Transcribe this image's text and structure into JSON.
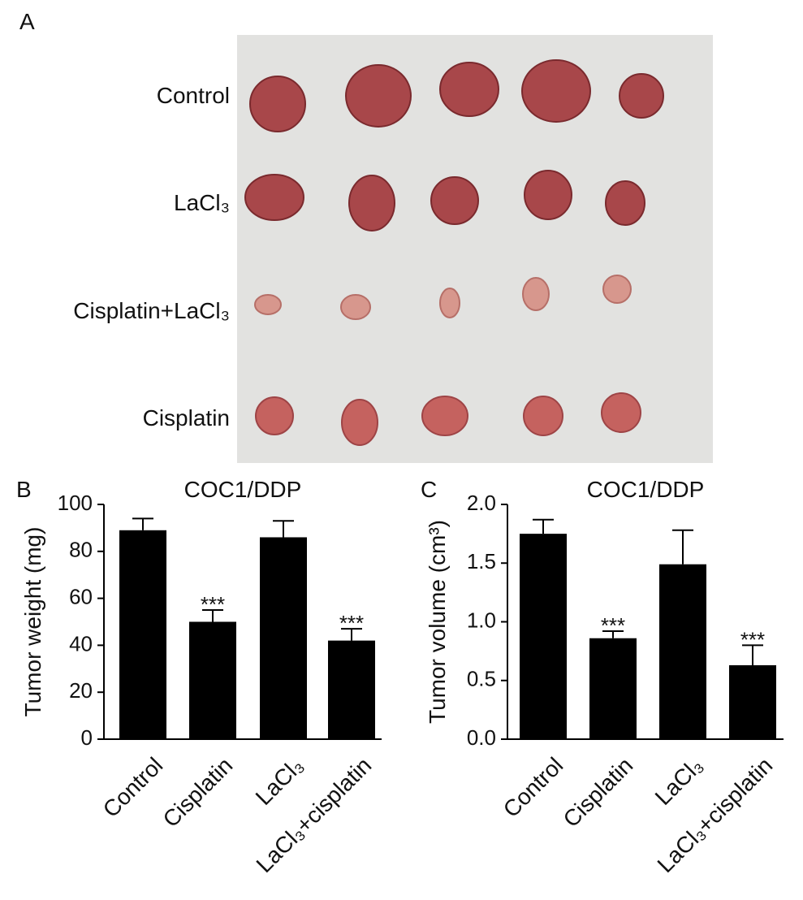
{
  "photo": {
    "panel_label": "A",
    "rows": [
      "Control",
      "LaCl₃",
      "Cisplatin+LaCl₃",
      "Cisplatin"
    ]
  },
  "chart_data": [
    {
      "type": "bar",
      "panel_label": "B",
      "title": "COC1/DDP",
      "ylabel": "Tumor weight (mg)",
      "categories": [
        "Control",
        "Cisplatin",
        "LaCl₃",
        "LaCl₃+cisplatin"
      ],
      "values": [
        89,
        50,
        86,
        42
      ],
      "errors": [
        5,
        5,
        7,
        5
      ],
      "color": "#000000",
      "ylim": [
        0,
        100
      ],
      "yticks": [
        0,
        20,
        40,
        60,
        80,
        100
      ],
      "annotations": [
        {
          "category": "Cisplatin",
          "text": "***"
        },
        {
          "category": "LaCl₃+cisplatin",
          "text": "***"
        }
      ]
    },
    {
      "type": "bar",
      "panel_label": "C",
      "title": "COC1/DDP",
      "ylabel": "Tumor volume (cm³)",
      "categories": [
        "Control",
        "Cisplatin",
        "LaCl₃",
        "LaCl₃+cisplatin"
      ],
      "values": [
        1.75,
        0.86,
        1.49,
        0.63
      ],
      "errors": [
        0.12,
        0.06,
        0.29,
        0.17
      ],
      "color": "#000000",
      "ylim": [
        0,
        2
      ],
      "yticks": [
        {
          "value": 0,
          "label": "0.0"
        },
        0.5,
        {
          "value": 1,
          "label": "1.0"
        },
        1.5,
        {
          "value": 2,
          "label": "2.0"
        }
      ],
      "annotations": [
        {
          "category": "Cisplatin",
          "text": "***"
        },
        {
          "category": "LaCl₃+cisplatin",
          "text": "***"
        }
      ]
    }
  ]
}
